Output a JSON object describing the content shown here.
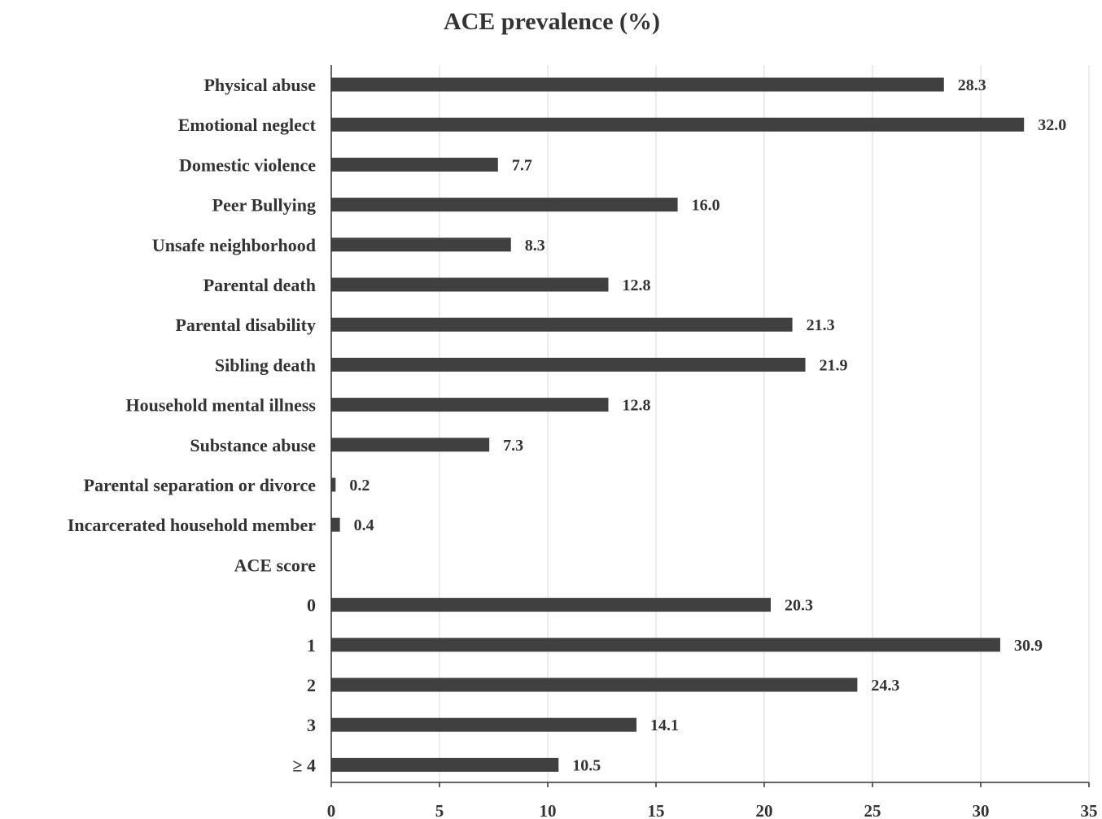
{
  "chart_data": {
    "type": "bar",
    "orientation": "horizontal",
    "title": "ACE prevalence (%)",
    "xlabel": "",
    "ylabel": "",
    "xlim": [
      0,
      35
    ],
    "x_ticks": [
      "0",
      "5",
      "10",
      "15",
      "20",
      "25",
      "30",
      "35"
    ],
    "grid": true,
    "legend": "none",
    "bar_color": "#404040",
    "categories": [
      "Physical abuse",
      "Emotional neglect",
      "Domestic violence",
      "Peer Bullying",
      "Unsafe neighborhood",
      "Parental death",
      "Parental disability",
      "Sibling death",
      "Household mental illness",
      "Substance abuse",
      "Parental separation or divorce",
      "Incarcerated household member",
      "ACE score",
      "0",
      "1",
      "2",
      "3",
      "≥ 4"
    ],
    "values": [
      28.3,
      32.0,
      7.7,
      16.0,
      8.3,
      12.8,
      21.3,
      21.9,
      12.8,
      7.3,
      0.2,
      0.4,
      null,
      20.3,
      30.9,
      24.3,
      14.1,
      10.5
    ],
    "data_labels": [
      "28.3",
      "32.0",
      "7.7",
      "16.0",
      "8.3",
      "12.8",
      "21.3",
      "21.9",
      "12.8",
      "7.3",
      "0.2",
      "0.4",
      "",
      "20.3",
      "30.9",
      "24.3",
      "14.1",
      "10.5"
    ]
  }
}
